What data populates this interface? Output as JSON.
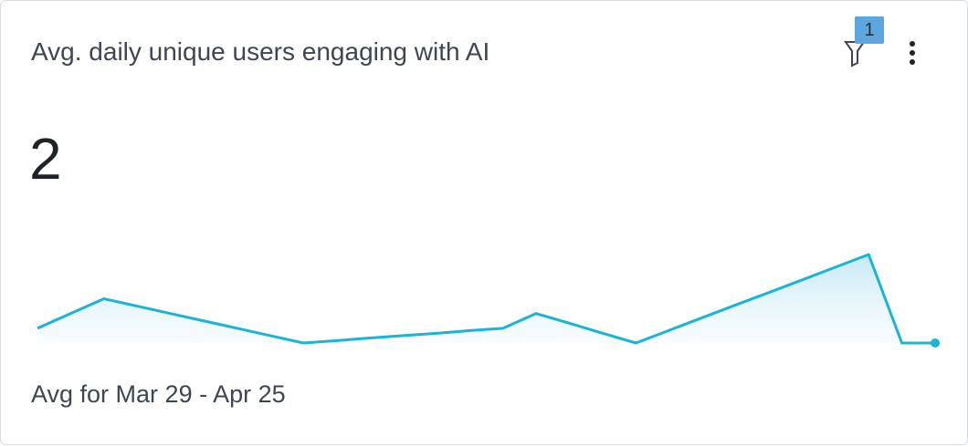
{
  "card": {
    "title": "Avg. daily unique users engaging with AI",
    "filter_count": 1,
    "value": 2,
    "footer": "Avg for Mar 29 - Apr 25"
  },
  "sparkline": {
    "type": "line",
    "color": "#1ab4d7",
    "values": [
      1.5,
      2,
      2.5,
      2.25,
      2,
      1.75,
      1.5,
      1.25,
      1,
      1.08,
      1.17,
      1.25,
      1.33,
      1.42,
      1.5,
      2,
      1.67,
      1.33,
      1,
      1.43,
      1.86,
      2.29,
      2.71,
      3.14,
      3.57,
      4,
      1,
      1
    ]
  }
}
